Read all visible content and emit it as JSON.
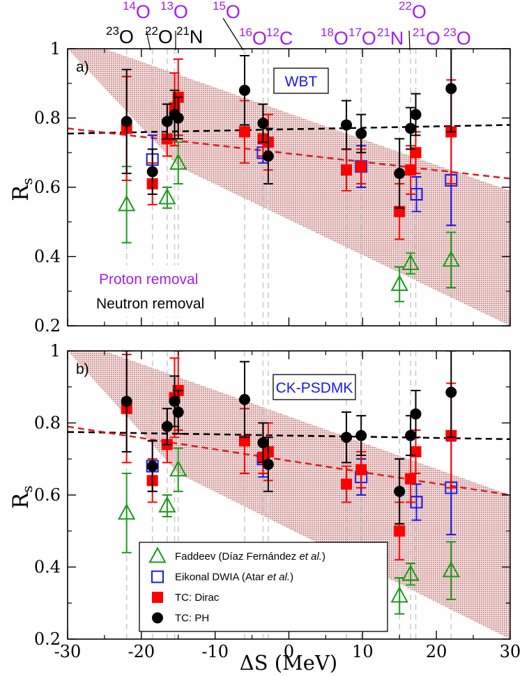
{
  "chart_data": [
    {
      "type": "scatter",
      "panel_label": "a)",
      "interaction_label": "WBT",
      "xlim": [
        -30,
        30
      ],
      "ylim": [
        0.2,
        1.0
      ],
      "xticks": [
        -30,
        -20,
        -10,
        0,
        10,
        20,
        30
      ],
      "xtick_labels": [
        "-30",
        "-20",
        "-10",
        "0",
        "10",
        "20",
        "30"
      ],
      "yticks": [
        0.2,
        0.4,
        0.6,
        0.8,
        1.0
      ],
      "ytick_labels": [
        "0.2",
        "0.4",
        "0.6",
        "0.8",
        "1"
      ],
      "ylabel": "R",
      "ylabel_sub": "s",
      "xlabel": "",
      "inset_labels": [
        {
          "text": "Proton removal",
          "color": "#a020f0"
        },
        {
          "text": "Neutron removal",
          "color": "#000000"
        }
      ],
      "band": {
        "upper": [
          [
            -30,
            1.0
          ],
          [
            -25,
            1.0
          ],
          [
            30,
            0.59
          ]
        ],
        "lower": [
          [
            -30,
            1.0
          ],
          [
            -15,
            0.66
          ],
          [
            30,
            0.2
          ]
        ],
        "color": "#c08080"
      },
      "fit_lines": [
        {
          "name": "neutron",
          "color": "#000000",
          "x": [
            -30,
            30
          ],
          "y": [
            0.755,
            0.78
          ]
        },
        {
          "name": "proton",
          "color": "#e31a1c",
          "x": [
            -30,
            30
          ],
          "y": [
            0.77,
            0.625
          ]
        }
      ],
      "series": [
        {
          "name": "Faddeev",
          "marker": "triangle-open",
          "color": "#1a9a1a",
          "points": [
            {
              "x": -22,
              "y": 0.55,
              "lo": 0.44,
              "hi": 0.66
            },
            {
              "x": -16.5,
              "y": 0.57,
              "lo": 0.54,
              "hi": 0.6
            },
            {
              "x": -15,
              "y": 0.67,
              "lo": 0.61,
              "hi": 0.73
            },
            {
              "x": 15,
              "y": 0.32,
              "lo": 0.27,
              "hi": 0.37
            },
            {
              "x": 16.5,
              "y": 0.38,
              "lo": 0.35,
              "hi": 0.41
            },
            {
              "x": 22,
              "y": 0.39,
              "lo": 0.31,
              "hi": 0.47
            }
          ]
        },
        {
          "name": "Eikonal DWIA",
          "marker": "square-open",
          "color": "#1a1ae6",
          "points": [
            {
              "x": -18.5,
              "y": 0.68,
              "lo": 0.61,
              "hi": 0.75
            },
            {
              "x": -3.5,
              "y": 0.7,
              "lo": 0.67,
              "hi": 0.73
            },
            {
              "x": 9.8,
              "y": 0.66,
              "lo": 0.6,
              "hi": 0.72
            },
            {
              "x": 17.3,
              "y": 0.58,
              "lo": 0.53,
              "hi": 0.63
            },
            {
              "x": 22,
              "y": 0.62,
              "lo": 0.49,
              "hi": 0.75
            }
          ]
        },
        {
          "name": "TC: Dirac",
          "marker": "square-filled",
          "color": "#ff0000",
          "points": [
            {
              "x": -22,
              "y": 0.77,
              "lo": 0.62,
              "hi": 0.92
            },
            {
              "x": -18.5,
              "y": 0.61,
              "lo": 0.55,
              "hi": 0.67
            },
            {
              "x": -16.5,
              "y": 0.74,
              "lo": 0.69,
              "hi": 0.79
            },
            {
              "x": -15.5,
              "y": 0.83,
              "lo": 0.72,
              "hi": 0.93
            },
            {
              "x": -15,
              "y": 0.86,
              "lo": 0.75,
              "hi": 0.97
            },
            {
              "x": -6,
              "y": 0.76,
              "lo": 0.67,
              "hi": 0.85
            },
            {
              "x": -3.5,
              "y": 0.74,
              "lo": 0.69,
              "hi": 0.79
            },
            {
              "x": -2.8,
              "y": 0.73,
              "lo": 0.65,
              "hi": 0.81
            },
            {
              "x": 7.8,
              "y": 0.65,
              "lo": 0.59,
              "hi": 0.71
            },
            {
              "x": 9.8,
              "y": 0.66,
              "lo": 0.61,
              "hi": 0.71
            },
            {
              "x": 15,
              "y": 0.53,
              "lo": 0.45,
              "hi": 0.61
            },
            {
              "x": 16.5,
              "y": 0.65,
              "lo": 0.58,
              "hi": 0.72
            },
            {
              "x": 17.2,
              "y": 0.7,
              "lo": 0.64,
              "hi": 0.76
            },
            {
              "x": 22,
              "y": 0.76,
              "lo": 0.61,
              "hi": 0.91
            }
          ]
        },
        {
          "name": "TC: PH",
          "marker": "circle-filled",
          "color": "#000000",
          "points": [
            {
              "x": -22,
              "y": 0.79,
              "lo": 0.64,
              "hi": 0.94
            },
            {
              "x": -18.5,
              "y": 0.645,
              "lo": 0.58,
              "hi": 0.71
            },
            {
              "x": -16.5,
              "y": 0.79,
              "lo": 0.74,
              "hi": 0.84
            },
            {
              "x": -15.5,
              "y": 0.81,
              "lo": 0.74,
              "hi": 0.88
            },
            {
              "x": -15,
              "y": 0.8,
              "lo": 0.74,
              "hi": 0.86
            },
            {
              "x": -6,
              "y": 0.88,
              "lo": 0.78,
              "hi": 0.98
            },
            {
              "x": -3.5,
              "y": 0.785,
              "lo": 0.73,
              "hi": 0.84
            },
            {
              "x": -2.8,
              "y": 0.69,
              "lo": 0.61,
              "hi": 0.77
            },
            {
              "x": 7.8,
              "y": 0.78,
              "lo": 0.71,
              "hi": 0.85
            },
            {
              "x": 9.8,
              "y": 0.755,
              "lo": 0.7,
              "hi": 0.81
            },
            {
              "x": 15,
              "y": 0.64,
              "lo": 0.54,
              "hi": 0.74
            },
            {
              "x": 16.5,
              "y": 0.77,
              "lo": 0.71,
              "hi": 0.83
            },
            {
              "x": 17.2,
              "y": 0.81,
              "lo": 0.75,
              "hi": 0.87
            },
            {
              "x": 22,
              "y": 0.885,
              "lo": 0.76,
              "hi": 1.0
            }
          ]
        }
      ]
    },
    {
      "type": "scatter",
      "panel_label": "b)",
      "interaction_label": "CK-PSDMK",
      "xlim": [
        -30,
        30
      ],
      "ylim": [
        0.2,
        1.0
      ],
      "xticks": [
        -30,
        -20,
        -10,
        0,
        10,
        20,
        30
      ],
      "xtick_labels": [
        "-30",
        "-20",
        "-10",
        "0",
        "10",
        "20",
        "30"
      ],
      "yticks": [
        0.2,
        0.4,
        0.6,
        0.8,
        1.0
      ],
      "ytick_labels": [
        "0.2",
        "0.4",
        "0.6",
        "0.8",
        "1"
      ],
      "ylabel": "R",
      "ylabel_sub": "s",
      "xlabel": "ΔS (MeV)",
      "band": {
        "upper": [
          [
            -30,
            1.0
          ],
          [
            -25,
            1.0
          ],
          [
            30,
            0.6
          ]
        ],
        "lower": [
          [
            -30,
            1.0
          ],
          [
            -15,
            0.66
          ],
          [
            30,
            0.2
          ]
        ],
        "color": "#c08080"
      },
      "fit_lines": [
        {
          "name": "neutron",
          "color": "#000000",
          "x": [
            -30,
            30
          ],
          "y": [
            0.775,
            0.755
          ]
        },
        {
          "name": "proton",
          "color": "#e31a1c",
          "x": [
            -30,
            30
          ],
          "y": [
            0.79,
            0.6
          ]
        }
      ],
      "series": [
        {
          "name": "Faddeev",
          "marker": "triangle-open",
          "color": "#1a9a1a",
          "points": [
            {
              "x": -22,
              "y": 0.55,
              "lo": 0.44,
              "hi": 0.66
            },
            {
              "x": -16.5,
              "y": 0.57,
              "lo": 0.54,
              "hi": 0.6
            },
            {
              "x": -15,
              "y": 0.67,
              "lo": 0.61,
              "hi": 0.73
            },
            {
              "x": 15,
              "y": 0.32,
              "lo": 0.27,
              "hi": 0.37
            },
            {
              "x": 16.5,
              "y": 0.38,
              "lo": 0.35,
              "hi": 0.41
            },
            {
              "x": 22,
              "y": 0.39,
              "lo": 0.31,
              "hi": 0.47
            }
          ]
        },
        {
          "name": "Eikonal DWIA",
          "marker": "square-open",
          "color": "#1a1ae6",
          "points": [
            {
              "x": -18.5,
              "y": 0.68,
              "lo": 0.61,
              "hi": 0.75
            },
            {
              "x": -3.5,
              "y": 0.7,
              "lo": 0.65,
              "hi": 0.75
            },
            {
              "x": 9.8,
              "y": 0.65,
              "lo": 0.6,
              "hi": 0.7
            },
            {
              "x": 17.3,
              "y": 0.58,
              "lo": 0.53,
              "hi": 0.63
            },
            {
              "x": 22,
              "y": 0.62,
              "lo": 0.49,
              "hi": 0.75
            }
          ]
        },
        {
          "name": "TC: Dirac",
          "marker": "square-filled",
          "color": "#ff0000",
          "points": [
            {
              "x": -22,
              "y": 0.84,
              "lo": 0.69,
              "hi": 0.99
            },
            {
              "x": -18.5,
              "y": 0.64,
              "lo": 0.58,
              "hi": 0.7
            },
            {
              "x": -16.5,
              "y": 0.74,
              "lo": 0.69,
              "hi": 0.79
            },
            {
              "x": -15.5,
              "y": 0.87,
              "lo": 0.76,
              "hi": 0.98
            },
            {
              "x": -15,
              "y": 0.89,
              "lo": 0.78,
              "hi": 1.0
            },
            {
              "x": -6,
              "y": 0.75,
              "lo": 0.66,
              "hi": 0.84
            },
            {
              "x": -3.5,
              "y": 0.705,
              "lo": 0.66,
              "hi": 0.75
            },
            {
              "x": -2.8,
              "y": 0.72,
              "lo": 0.64,
              "hi": 0.8
            },
            {
              "x": 7.8,
              "y": 0.63,
              "lo": 0.58,
              "hi": 0.68
            },
            {
              "x": 9.8,
              "y": 0.67,
              "lo": 0.62,
              "hi": 0.72
            },
            {
              "x": 15,
              "y": 0.5,
              "lo": 0.42,
              "hi": 0.58
            },
            {
              "x": 16.5,
              "y": 0.645,
              "lo": 0.58,
              "hi": 0.71
            },
            {
              "x": 17.2,
              "y": 0.72,
              "lo": 0.66,
              "hi": 0.78
            },
            {
              "x": 22,
              "y": 0.765,
              "lo": 0.62,
              "hi": 0.91
            }
          ]
        },
        {
          "name": "TC: PH",
          "marker": "circle-filled",
          "color": "#000000",
          "points": [
            {
              "x": -22,
              "y": 0.86,
              "lo": 0.72,
              "hi": 1.0
            },
            {
              "x": -18.5,
              "y": 0.68,
              "lo": 0.61,
              "hi": 0.75
            },
            {
              "x": -16.5,
              "y": 0.79,
              "lo": 0.74,
              "hi": 0.84
            },
            {
              "x": -15.5,
              "y": 0.86,
              "lo": 0.79,
              "hi": 0.93
            },
            {
              "x": -15,
              "y": 0.83,
              "lo": 0.77,
              "hi": 0.89
            },
            {
              "x": -6,
              "y": 0.865,
              "lo": 0.76,
              "hi": 0.97
            },
            {
              "x": -3.5,
              "y": 0.745,
              "lo": 0.69,
              "hi": 0.8
            },
            {
              "x": -2.8,
              "y": 0.685,
              "lo": 0.61,
              "hi": 0.76
            },
            {
              "x": 7.8,
              "y": 0.76,
              "lo": 0.69,
              "hi": 0.83
            },
            {
              "x": 9.8,
              "y": 0.765,
              "lo": 0.71,
              "hi": 0.82
            },
            {
              "x": 15,
              "y": 0.61,
              "lo": 0.52,
              "hi": 0.7
            },
            {
              "x": 16.5,
              "y": 0.765,
              "lo": 0.71,
              "hi": 0.82
            },
            {
              "x": 17.2,
              "y": 0.825,
              "lo": 0.76,
              "hi": 0.89
            },
            {
              "x": 22,
              "y": 0.885,
              "lo": 0.76,
              "hi": 1.0
            }
          ]
        }
      ]
    }
  ],
  "guide_lines_x": [
    -22,
    -18.5,
    -16.5,
    -15.5,
    -15,
    -6,
    -3.5,
    -2.8,
    7.8,
    9.8,
    15,
    16.5,
    17.2,
    22
  ],
  "nucleus_labels": [
    {
      "mass": "23",
      "sym": "O",
      "color": "#000000",
      "row": "bottom"
    },
    {
      "mass": "22",
      "sym": "O",
      "color": "#000000",
      "row": "bottom"
    },
    {
      "mass": "21",
      "sym": "N",
      "color": "#000000",
      "row": "bottom"
    },
    {
      "mass": "16",
      "sym": "O",
      "color": "#a020f0",
      "row": "bottom"
    },
    {
      "mass": "12",
      "sym": "C",
      "color": "#a020f0",
      "row": "bottom"
    },
    {
      "mass": "18",
      "sym": "O",
      "color": "#a020f0",
      "row": "bottom"
    },
    {
      "mass": "17",
      "sym": "O",
      "color": "#a020f0",
      "row": "bottom"
    },
    {
      "mass": "21",
      "sym": "N",
      "color": "#a020f0",
      "row": "bottom"
    },
    {
      "mass": "21",
      "sym": "O",
      "color": "#a020f0",
      "row": "bottom"
    },
    {
      "mass": "23",
      "sym": "O",
      "color": "#a020f0",
      "row": "bottom"
    },
    {
      "mass": "14",
      "sym": "O",
      "color": "#a020f0",
      "row": "top"
    },
    {
      "mass": "13",
      "sym": "O",
      "color": "#a020f0",
      "row": "top"
    },
    {
      "mass": "15",
      "sym": "O",
      "color": "#a020f0",
      "row": "top"
    },
    {
      "mass": "22",
      "sym": "O",
      "color": "#a020f0",
      "row": "top"
    }
  ],
  "legend": {
    "entries": [
      {
        "marker": "triangle-open",
        "color": "#1a9a1a",
        "text": "Faddeev (Díaz Fernández ",
        "italic": "et al.",
        "after": ")"
      },
      {
        "marker": "square-open",
        "color": "#1a1ae6",
        "text": "Eikonal DWIA (Atar ",
        "italic": "et al.",
        "after": ")"
      },
      {
        "marker": "square-filled",
        "color": "#ff0000",
        "text": "TC: Dirac",
        "italic": "",
        "after": ""
      },
      {
        "marker": "circle-filled",
        "color": "#000000",
        "text": "TC: PH",
        "italic": "",
        "after": ""
      }
    ]
  },
  "colors": {
    "proton_label": "#a020f0",
    "neutron_label": "#000000",
    "guide": "#cccccc",
    "interaction_box_text": "#1a1ae6"
  }
}
